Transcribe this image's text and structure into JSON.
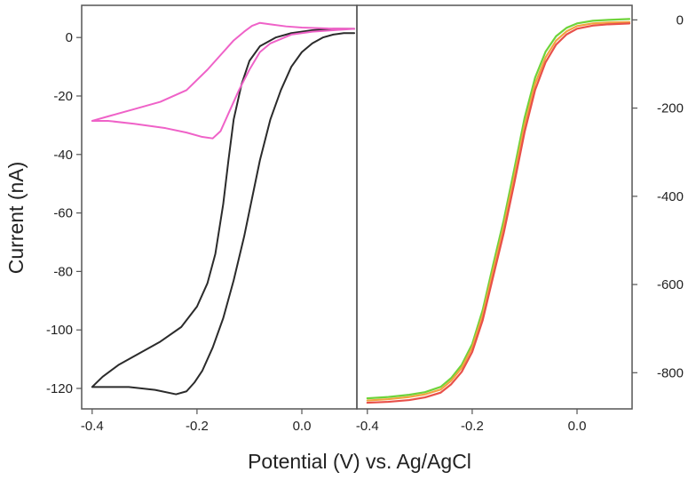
{
  "axis_titles": {
    "y": "Current (nA)",
    "x": "Potential (V) vs. Ag/AgCl"
  },
  "chart_data": [
    {
      "type": "line",
      "panel": "left",
      "xlabel": "Potential (V) vs. Ag/AgCl",
      "ylabel": "Current (nA)",
      "xlim": [
        -0.42,
        0.105
      ],
      "ylim": [
        -127,
        11
      ],
      "x_ticks": [
        -0.4,
        -0.2,
        0.0
      ],
      "x_tick_labels": [
        "-0.4",
        "-0.2",
        "0.0"
      ],
      "y_ticks": [
        0,
        -20,
        -40,
        -60,
        -80,
        -100,
        -120
      ],
      "y_tick_labels": [
        "0",
        "-20",
        "-40",
        "-60",
        "-80",
        "-100",
        "-120"
      ],
      "y_axis_side": "left",
      "series": [
        {
          "name": "black CV",
          "color": "#2b2b2b",
          "points": [
            [
              0.1,
              1.5
            ],
            [
              0.08,
              1.5
            ],
            [
              0.06,
              1
            ],
            [
              0.04,
              0
            ],
            [
              0.02,
              -2
            ],
            [
              0.0,
              -5
            ],
            [
              -0.02,
              -10
            ],
            [
              -0.04,
              -18
            ],
            [
              -0.06,
              -28
            ],
            [
              -0.08,
              -42
            ],
            [
              -0.095,
              -55
            ],
            [
              -0.11,
              -68
            ],
            [
              -0.13,
              -83
            ],
            [
              -0.15,
              -96
            ],
            [
              -0.17,
              -106
            ],
            [
              -0.19,
              -114
            ],
            [
              -0.205,
              -118
            ],
            [
              -0.22,
              -121
            ],
            [
              -0.24,
              -122
            ],
            [
              -0.28,
              -120.5
            ],
            [
              -0.33,
              -119.5
            ],
            [
              -0.38,
              -119.5
            ],
            [
              -0.4,
              -119.5
            ],
            [
              -0.38,
              -116
            ],
            [
              -0.35,
              -112
            ],
            [
              -0.31,
              -108
            ],
            [
              -0.27,
              -104
            ],
            [
              -0.23,
              -99
            ],
            [
              -0.2,
              -92
            ],
            [
              -0.18,
              -84
            ],
            [
              -0.165,
              -74
            ],
            [
              -0.15,
              -57
            ],
            [
              -0.14,
              -42
            ],
            [
              -0.13,
              -28
            ],
            [
              -0.115,
              -16
            ],
            [
              -0.1,
              -8
            ],
            [
              -0.08,
              -3
            ],
            [
              -0.05,
              0
            ],
            [
              -0.02,
              1.5
            ],
            [
              0.02,
              2.5
            ],
            [
              0.06,
              3
            ],
            [
              0.1,
              3
            ]
          ]
        },
        {
          "name": "magenta CV",
          "color": "#ef62c8",
          "points": [
            [
              0.1,
              3
            ],
            [
              0.06,
              2.5
            ],
            [
              0.02,
              2
            ],
            [
              -0.02,
              1
            ],
            [
              -0.06,
              -2
            ],
            [
              -0.08,
              -5
            ],
            [
              -0.1,
              -11
            ],
            [
              -0.12,
              -18
            ],
            [
              -0.14,
              -26
            ],
            [
              -0.155,
              -32
            ],
            [
              -0.17,
              -34.5
            ],
            [
              -0.19,
              -34
            ],
            [
              -0.22,
              -32.5
            ],
            [
              -0.26,
              -31
            ],
            [
              -0.32,
              -29.5
            ],
            [
              -0.37,
              -28.5
            ],
            [
              -0.4,
              -28.5
            ],
            [
              -0.37,
              -27
            ],
            [
              -0.32,
              -24.5
            ],
            [
              -0.27,
              -22
            ],
            [
              -0.22,
              -18
            ],
            [
              -0.18,
              -11
            ],
            [
              -0.15,
              -5
            ],
            [
              -0.13,
              -1
            ],
            [
              -0.11,
              2
            ],
            [
              -0.095,
              4
            ],
            [
              -0.08,
              5
            ],
            [
              -0.06,
              4.5
            ],
            [
              -0.03,
              3.8
            ],
            [
              0.0,
              3.4
            ],
            [
              0.05,
              3.1
            ],
            [
              0.1,
              3
            ]
          ]
        }
      ]
    },
    {
      "type": "line",
      "panel": "right",
      "xlabel": "Potential (V) vs. Ag/AgCl",
      "ylabel": "Current (nA)",
      "xlim": [
        -0.42,
        0.105
      ],
      "ylim": [
        -882,
        33
      ],
      "x_ticks": [
        -0.4,
        -0.2,
        0.0
      ],
      "x_tick_labels": [
        "-0.4",
        "-0.2",
        "0.0"
      ],
      "y_ticks": [
        0,
        -200,
        -400,
        -600,
        -800
      ],
      "y_tick_labels": [
        "0",
        "-200",
        "-400",
        "-600",
        "-800"
      ],
      "y_axis_side": "right",
      "series": [
        {
          "name": "green",
          "color": "#6ed33a",
          "points": [
            [
              -0.4,
              -858
            ],
            [
              -0.36,
              -855
            ],
            [
              -0.32,
              -850
            ],
            [
              -0.29,
              -844
            ],
            [
              -0.26,
              -832
            ],
            [
              -0.24,
              -812
            ],
            [
              -0.22,
              -782
            ],
            [
              -0.2,
              -735
            ],
            [
              -0.18,
              -658
            ],
            [
              -0.16,
              -555
            ],
            [
              -0.14,
              -455
            ],
            [
              -0.12,
              -340
            ],
            [
              -0.1,
              -222
            ],
            [
              -0.08,
              -131
            ],
            [
              -0.06,
              -72
            ],
            [
              -0.04,
              -37
            ],
            [
              -0.02,
              -18
            ],
            [
              0.0,
              -8
            ],
            [
              0.03,
              -2
            ],
            [
              0.06,
              0
            ],
            [
              0.1,
              2
            ]
          ]
        },
        {
          "name": "orange",
          "color": "#f2a340",
          "points": [
            [
              -0.4,
              -863
            ],
            [
              -0.36,
              -860
            ],
            [
              -0.32,
              -855
            ],
            [
              -0.29,
              -849
            ],
            [
              -0.26,
              -838
            ],
            [
              -0.24,
              -818
            ],
            [
              -0.22,
              -789
            ],
            [
              -0.2,
              -743
            ],
            [
              -0.18,
              -669
            ],
            [
              -0.16,
              -568
            ],
            [
              -0.14,
              -469
            ],
            [
              -0.12,
              -356
            ],
            [
              -0.1,
              -238
            ],
            [
              -0.08,
              -145
            ],
            [
              -0.06,
              -85
            ],
            [
              -0.04,
              -47
            ],
            [
              -0.02,
              -26
            ],
            [
              0.0,
              -14
            ],
            [
              0.03,
              -8
            ],
            [
              0.06,
              -6
            ],
            [
              0.1,
              -5
            ]
          ]
        },
        {
          "name": "red",
          "color": "#e8504a",
          "points": [
            [
              -0.4,
              -868
            ],
            [
              -0.36,
              -866
            ],
            [
              -0.32,
              -862
            ],
            [
              -0.29,
              -856
            ],
            [
              -0.26,
              -845
            ],
            [
              -0.24,
              -826
            ],
            [
              -0.22,
              -798
            ],
            [
              -0.2,
              -753
            ],
            [
              -0.18,
              -681
            ],
            [
              -0.16,
              -582
            ],
            [
              -0.14,
              -484
            ],
            [
              -0.12,
              -372
            ],
            [
              -0.1,
              -254
            ],
            [
              -0.08,
              -159
            ],
            [
              -0.06,
              -96
            ],
            [
              -0.04,
              -56
            ],
            [
              -0.02,
              -33
            ],
            [
              0.0,
              -20
            ],
            [
              0.03,
              -13
            ],
            [
              0.06,
              -10
            ],
            [
              0.1,
              -8
            ]
          ]
        }
      ]
    }
  ]
}
